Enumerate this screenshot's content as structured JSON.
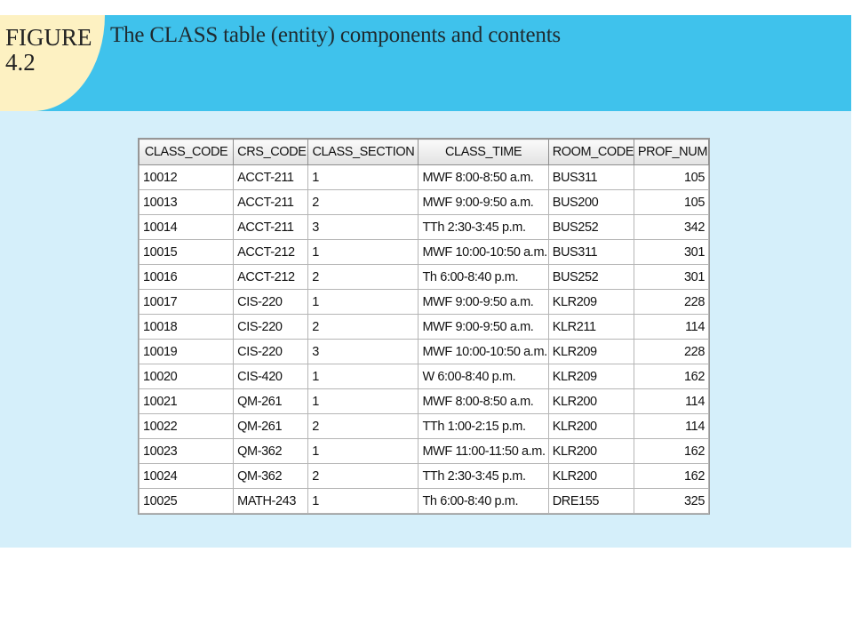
{
  "figure": {
    "label_line1": "FIGURE",
    "label_line2": "4.2",
    "title": "The CLASS table (entity) components and contents"
  },
  "table": {
    "columns": [
      "CLASS_CODE",
      "CRS_CODE",
      "CLASS_SECTION",
      "CLASS_TIME",
      "ROOM_CODE",
      "PROF_NUM"
    ],
    "rows": [
      [
        "10012",
        "ACCT-211",
        "1",
        "MWF 8:00-8:50 a.m.",
        "BUS311",
        "105"
      ],
      [
        "10013",
        "ACCT-211",
        "2",
        "MWF 9:00-9:50 a.m.",
        "BUS200",
        "105"
      ],
      [
        "10014",
        "ACCT-211",
        "3",
        "TTh 2:30-3:45 p.m.",
        "BUS252",
        "342"
      ],
      [
        "10015",
        "ACCT-212",
        "1",
        "MWF 10:00-10:50 a.m.",
        "BUS311",
        "301"
      ],
      [
        "10016",
        "ACCT-212",
        "2",
        "Th 6:00-8:40 p.m.",
        "BUS252",
        "301"
      ],
      [
        "10017",
        "CIS-220",
        "1",
        "MWF 9:00-9:50 a.m.",
        "KLR209",
        "228"
      ],
      [
        "10018",
        "CIS-220",
        "2",
        "MWF 9:00-9:50 a.m.",
        "KLR211",
        "114"
      ],
      [
        "10019",
        "CIS-220",
        "3",
        "MWF 10:00-10:50 a.m.",
        "KLR209",
        "228"
      ],
      [
        "10020",
        "CIS-420",
        "1",
        "W 6:00-8:40 p.m.",
        "KLR209",
        "162"
      ],
      [
        "10021",
        "QM-261",
        "1",
        "MWF 8:00-8:50 a.m.",
        "KLR200",
        "114"
      ],
      [
        "10022",
        "QM-261",
        "2",
        "TTh 1:00-2:15 p.m.",
        "KLR200",
        "114"
      ],
      [
        "10023",
        "QM-362",
        "1",
        "MWF 11:00-11:50 a.m.",
        "KLR200",
        "162"
      ],
      [
        "10024",
        "QM-362",
        "2",
        "TTh 2:30-3:45 p.m.",
        "KLR200",
        "162"
      ],
      [
        "10025",
        "MATH-243",
        "1",
        "Th 6:00-8:40 p.m.",
        "DRE155",
        "325"
      ]
    ]
  }
}
